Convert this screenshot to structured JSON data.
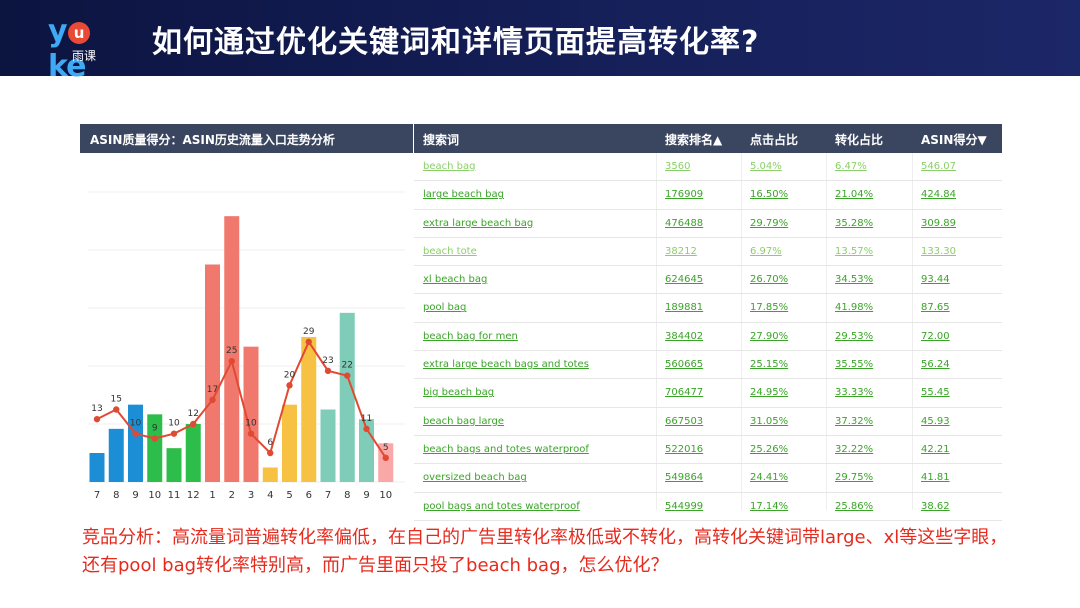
{
  "header": {
    "logo_word_left": "y",
    "logo_word_u": "u",
    "logo_word_right": "ke",
    "logo_sub": "雨课",
    "title": "如何通过优化关键词和详情页面提高转化率?"
  },
  "chart_panel": {
    "title": "ASIN质量得分：ASIN历史流量入口走势分析"
  },
  "table": {
    "headers": {
      "keyword": "搜索词",
      "rank": "搜索排名▲",
      "click": "点击占比",
      "conversion": "转化占比",
      "score": "ASIN得分▼"
    },
    "rows": [
      {
        "keyword": "beach bag",
        "rank": "3560",
        "click": "5.04%",
        "conversion": "6.47%",
        "score": "546.07",
        "color": "#8bcf6a"
      },
      {
        "keyword": "large beach bag",
        "rank": "176909",
        "click": "16.50%",
        "conversion": "21.04%",
        "score": "424.84",
        "color": "#3aa428"
      },
      {
        "keyword": "extra large beach bag",
        "rank": "476488",
        "click": "29.79%",
        "conversion": "35.28%",
        "score": "309.89",
        "color": "#3aa428"
      },
      {
        "keyword": "beach tote",
        "rank": "38212",
        "click": "6.97%",
        "conversion": "13.57%",
        "score": "133.30",
        "color": "#8bcf6a"
      },
      {
        "keyword": "xl beach bag",
        "rank": "624645",
        "click": "26.70%",
        "conversion": "34.53%",
        "score": "93.44",
        "color": "#3aa428"
      },
      {
        "keyword": "pool bag",
        "rank": "189881",
        "click": "17.85%",
        "conversion": "41.98%",
        "score": "87.65",
        "color": "#3aa428"
      },
      {
        "keyword": "beach bag for men",
        "rank": "384402",
        "click": "27.90%",
        "conversion": "29.53%",
        "score": "72.00",
        "color": "#3aa428"
      },
      {
        "keyword": "extra large beach bags and totes",
        "rank": "560665",
        "click": "25.15%",
        "conversion": "35.55%",
        "score": "56.24",
        "color": "#3aa428"
      },
      {
        "keyword": "big beach bag",
        "rank": "706477",
        "click": "24.95%",
        "conversion": "33.33%",
        "score": "55.45",
        "color": "#3aa428"
      },
      {
        "keyword": "beach bag large",
        "rank": "667503",
        "click": "31.05%",
        "conversion": "37.32%",
        "score": "45.93",
        "color": "#3aa428"
      },
      {
        "keyword": "beach bags and totes waterproof",
        "rank": "522016",
        "click": "25.26%",
        "conversion": "32.22%",
        "score": "42.21",
        "color": "#3aa428"
      },
      {
        "keyword": "oversized beach bag",
        "rank": "549864",
        "click": "24.41%",
        "conversion": "29.75%",
        "score": "41.81",
        "color": "#3aa428"
      },
      {
        "keyword": "pool bags and totes waterproof",
        "rank": "544999",
        "click": "17.14%",
        "conversion": "25.86%",
        "score": "38.62",
        "color": "#3aa428"
      }
    ]
  },
  "analysis": {
    "text": "竞品分析：高流量词普遍转化率偏低，在自己的广告里转化率极低或不转化，高转化关键词带large、xl等这些字眼，还有pool bag转化率特别高，而广告里面只投了beach bag，怎么优化？"
  },
  "chart_data": {
    "type": "bar",
    "categories": [
      "7",
      "8",
      "9",
      "10",
      "11",
      "12",
      "1",
      "2",
      "3",
      "4",
      "5",
      "6",
      "7",
      "8",
      "9",
      "10"
    ],
    "bars": [
      6,
      11,
      16,
      14,
      7,
      12,
      45,
      55,
      28,
      3,
      16,
      30,
      15,
      35,
      13,
      8
    ],
    "bar_colors": [
      "#1c8ed6",
      "#1c8ed6",
      "#1c8ed6",
      "#2dbd4a",
      "#2dbd4a",
      "#2dbd4a",
      "#f0786c",
      "#f0786c",
      "#f0786c",
      "#f7c143",
      "#f7c143",
      "#f7c143",
      "#7fcdb8",
      "#7fcdb8",
      "#7fcdb8",
      "#f9a7a7"
    ],
    "line": {
      "values": [
        13,
        15,
        10,
        9,
        10,
        12,
        17,
        25,
        10,
        6,
        20,
        29,
        23,
        22,
        11,
        5
      ],
      "color": "#e14a32"
    },
    "ylim": [
      0,
      60
    ]
  }
}
